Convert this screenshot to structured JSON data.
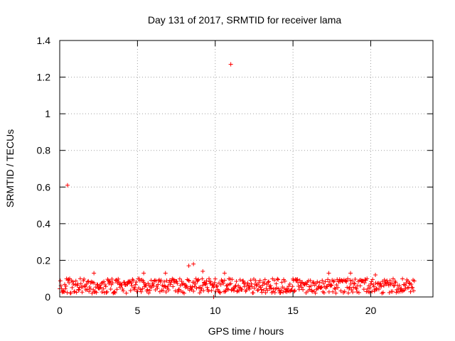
{
  "chart_data": {
    "type": "scatter",
    "title": "Day 131 of 2017, SRMTID for receiver lama",
    "xlabel": "GPS time / hours",
    "ylabel": "SRMTID / TECUs",
    "xlim": [
      0,
      24
    ],
    "ylim": [
      0,
      1.4
    ],
    "x_ticks": [
      0,
      5,
      10,
      15,
      20
    ],
    "y_ticks": [
      0,
      0.2,
      0.4,
      0.6,
      0.8,
      1,
      1.2,
      1.4
    ],
    "grid": true,
    "marker": "+",
    "series_color": "#ff0000",
    "series": [
      {
        "points": [
          [
            0.5,
            0.61
          ],
          [
            11.0,
            1.27
          ],
          [
            2.2,
            0.13
          ],
          [
            5.4,
            0.13
          ],
          [
            6.8,
            0.13
          ],
          [
            8.3,
            0.17
          ],
          [
            8.6,
            0.18
          ],
          [
            9.2,
            0.14
          ],
          [
            10.6,
            0.13
          ],
          [
            17.3,
            0.13
          ],
          [
            18.7,
            0.13
          ],
          [
            20.3,
            0.12
          ],
          [
            9.9,
            0.0
          ]
        ],
        "band": {
          "x_start": 0.0,
          "x_end": 22.8,
          "step": 0.04,
          "y_min": 0.02,
          "y_max": 0.1
        }
      }
    ]
  }
}
